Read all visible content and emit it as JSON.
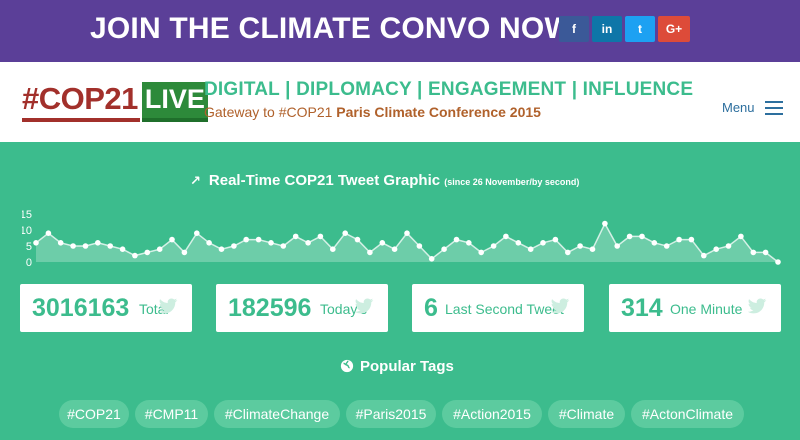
{
  "banner": {
    "title": "JOIN THE CLIMATE CONVO NOW!",
    "social": [
      {
        "icon": "facebook-icon",
        "glyph": "f"
      },
      {
        "icon": "linkedin-icon",
        "glyph": "in"
      },
      {
        "icon": "twitter-icon",
        "glyph": "t"
      },
      {
        "icon": "googleplus-icon",
        "glyph": "G+"
      }
    ]
  },
  "header": {
    "logo_main": "#COP21",
    "logo_live": "LIVE",
    "tagline": "DIGITAL | DIPLOMACY | ENGAGEMENT | INFLUENCE",
    "gateway_prefix": "Gateway to #COP21 ",
    "gateway_bold": "Paris Climate Conference 2015",
    "menu_label": "Menu"
  },
  "graph": {
    "title": "Real-Time COP21 Tweet Graphic",
    "subtitle": "(since 26 November/by second)"
  },
  "chart_data": {
    "type": "area",
    "ylim": [
      0,
      15
    ],
    "yticks": [
      "15",
      "10",
      "5",
      "0"
    ],
    "values": [
      6,
      9,
      6,
      5,
      5,
      6,
      5,
      4,
      2,
      3,
      4,
      7,
      3,
      9,
      6,
      4,
      5,
      7,
      7,
      6,
      5,
      8,
      6,
      8,
      4,
      9,
      7,
      3,
      6,
      4,
      9,
      5,
      1,
      4,
      7,
      6,
      3,
      5,
      8,
      6,
      4,
      6,
      7,
      3,
      5,
      4,
      12,
      5,
      8,
      8,
      6,
      5,
      7,
      7,
      2,
      4,
      5,
      8,
      3,
      3,
      0
    ]
  },
  "stats": [
    {
      "value": "3016163",
      "label": "Total"
    },
    {
      "value": "182596",
      "label": "Today's"
    },
    {
      "value": "6",
      "label": "Last Second Tweet"
    },
    {
      "value": "314",
      "label": "One Minute"
    }
  ],
  "tags_title": "Popular Tags",
  "tags": [
    "#COP21",
    "#CMP11",
    "#ClimateChange",
    "#Paris2015",
    "#Action2015",
    "#Climate",
    "#ActonClimate"
  ],
  "colors": {
    "banner": "#5b3f98",
    "accent_green": "#3cbc8d",
    "logo_red": "#a2302b",
    "logo_green": "#2d8a3a"
  }
}
